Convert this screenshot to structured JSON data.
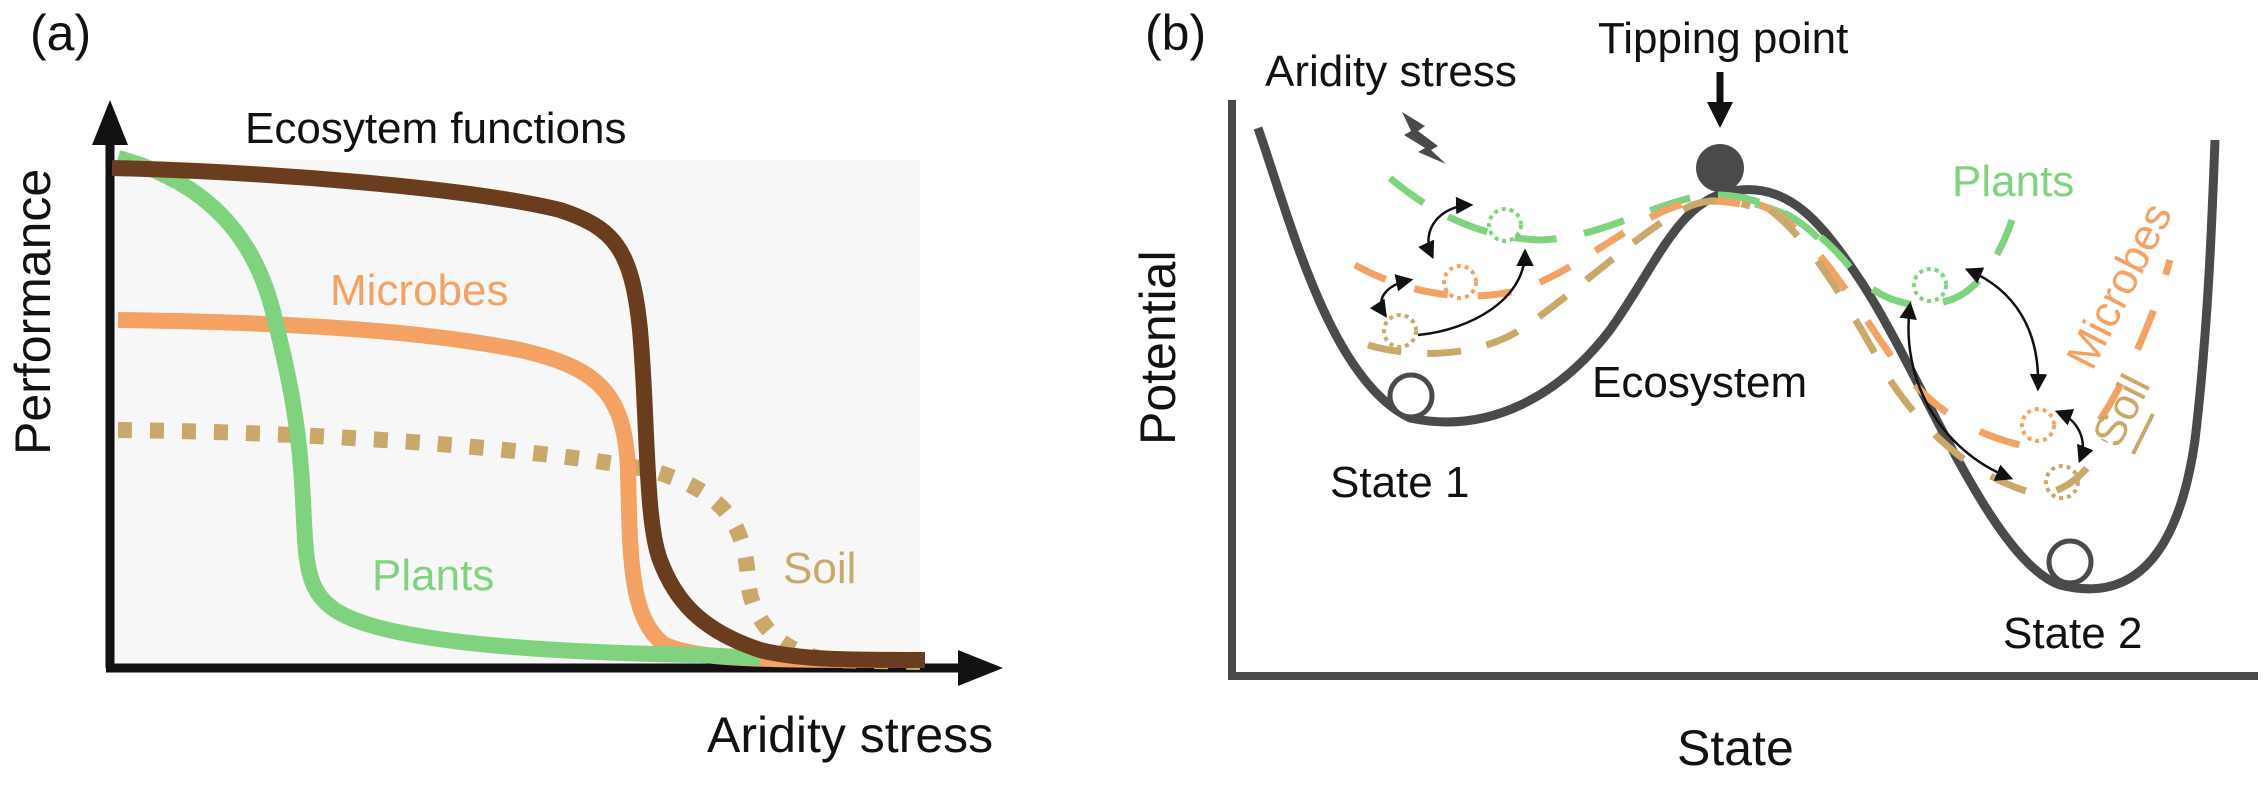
{
  "panel_a": {
    "panel_label": "(a)",
    "y_axis_label": "Performance",
    "x_axis_label": "Aridity stress",
    "curves": [
      {
        "name": "Ecosytem functions",
        "color": "#6b3d1f",
        "style": "solid"
      },
      {
        "name": "Microbes",
        "color": "#f4a164",
        "style": "solid"
      },
      {
        "name": "Soil",
        "color": "#c9a86a",
        "style": "dotted"
      },
      {
        "name": "Plants",
        "color": "#7fd37f",
        "style": "solid"
      }
    ]
  },
  "panel_b": {
    "panel_label": "(b)",
    "y_axis_label": "Potential",
    "x_axis_label": "State",
    "stress_label": "Aridity stress",
    "tipping_label": "Tipping point",
    "ecosystem_label": "Ecosystem",
    "state1_label": "State 1",
    "state2_label": "State 2",
    "plants_label": "Plants",
    "microbes_label": "Microbes",
    "soil_label": "Soil",
    "colors": {
      "curve": "#4a4a4a",
      "plants": "#7fd37f",
      "microbes": "#f4a164",
      "soil": "#c9a86a"
    }
  }
}
